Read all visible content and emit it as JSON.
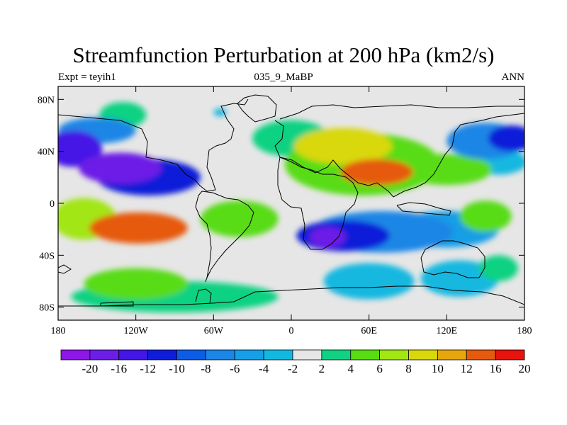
{
  "chart_data": {
    "type": "heatmap",
    "title": "Streamfunction Perturbation at 200 hPa (km2/s)",
    "subtitle_left": "Expt = teyih1",
    "subtitle_center": "035_9_MaBP",
    "subtitle_right": "ANN",
    "x_ticks": [
      {
        "value": -180,
        "label": "180"
      },
      {
        "value": -120,
        "label": "120W"
      },
      {
        "value": -60,
        "label": "60W"
      },
      {
        "value": 0,
        "label": "0"
      },
      {
        "value": 60,
        "label": "60E"
      },
      {
        "value": 120,
        "label": "120E"
      },
      {
        "value": 180,
        "label": "180"
      }
    ],
    "y_ticks": [
      {
        "value": 80,
        "label": "80N"
      },
      {
        "value": 40,
        "label": "40N"
      },
      {
        "value": 0,
        "label": "0"
      },
      {
        "value": -40,
        "label": "40S"
      },
      {
        "value": -80,
        "label": "80S"
      }
    ],
    "xlim": [
      -180,
      180
    ],
    "ylim": [
      -90,
      90
    ],
    "colorbar": {
      "levels": [
        -20,
        -16,
        -12,
        -10,
        -8,
        -6,
        -4,
        -2,
        2,
        4,
        6,
        8,
        10,
        12,
        16,
        20
      ],
      "labels": [
        "-20",
        "-16",
        "-12",
        "-10",
        "-8",
        "-6",
        "-4",
        "-2",
        "2",
        "4",
        "6",
        "8",
        "10",
        "12",
        "16",
        "20"
      ],
      "colors": [
        "#8e16e6",
        "#6c1ee6",
        "#4416e6",
        "#0e1ed8",
        "#0c5ce6",
        "#1a86e6",
        "#169ee6",
        "#13b8e0",
        "#e6e6e6",
        "#10d282",
        "#58dc12",
        "#a2e612",
        "#d8d80c",
        "#e6a60e",
        "#e65a0e",
        "#e6140c"
      ]
    },
    "field_features": [
      {
        "lon": -132,
        "lat": 27,
        "peak": -22,
        "spread_lon": 32,
        "spread_lat": 12,
        "color_index": 1
      },
      {
        "lon": -168,
        "lat": 42,
        "peak": -14,
        "spread_lon": 22,
        "spread_lat": 14,
        "color_index": 2
      },
      {
        "lon": -150,
        "lat": 56,
        "peak": -6,
        "spread_lon": 30,
        "spread_lat": 10,
        "color_index": 5
      },
      {
        "lon": -110,
        "lat": 20,
        "peak": -10,
        "spread_lon": 40,
        "spread_lat": 14,
        "color_index": 3
      },
      {
        "lon": -118,
        "lat": -19,
        "peak": 17,
        "spread_lon": 38,
        "spread_lat": 12,
        "color_index": 14
      },
      {
        "lon": -160,
        "lat": -12,
        "peak": 8,
        "spread_lon": 25,
        "spread_lat": 16,
        "color_index": 11
      },
      {
        "lon": -40,
        "lat": -12,
        "peak": 6,
        "spread_lon": 30,
        "spread_lat": 14,
        "color_index": 10
      },
      {
        "lon": -120,
        "lat": -62,
        "peak": 5,
        "spread_lon": 40,
        "spread_lat": 12,
        "color_index": 10
      },
      {
        "lon": -90,
        "lat": -72,
        "peak": 3,
        "spread_lon": 80,
        "spread_lat": 12,
        "color_index": 9
      },
      {
        "lon": -130,
        "lat": 68,
        "peak": 3,
        "spread_lon": 18,
        "spread_lat": 10,
        "color_index": 9
      },
      {
        "lon": -55,
        "lat": 70,
        "peak": -3,
        "spread_lon": 5,
        "spread_lat": 3,
        "color_index": 7
      },
      {
        "lon": 66,
        "lat": 24,
        "peak": 15,
        "spread_lon": 28,
        "spread_lat": 10,
        "color_index": 14
      },
      {
        "lon": 40,
        "lat": 44,
        "peak": 9,
        "spread_lon": 38,
        "spread_lat": 14,
        "color_index": 12
      },
      {
        "lon": 55,
        "lat": 30,
        "peak": 7,
        "spread_lon": 60,
        "spread_lat": 24,
        "color_index": 10
      },
      {
        "lon": 120,
        "lat": 26,
        "peak": 5,
        "spread_lon": 35,
        "spread_lat": 12,
        "color_index": 10
      },
      {
        "lon": 0,
        "lat": 50,
        "peak": 5,
        "spread_lon": 30,
        "spread_lat": 14,
        "color_index": 9
      },
      {
        "lon": 28,
        "lat": -26,
        "peak": -20,
        "spread_lon": 14,
        "spread_lat": 8,
        "color_index": 1
      },
      {
        "lon": 40,
        "lat": -25,
        "peak": -10,
        "spread_lon": 36,
        "spread_lat": 12,
        "color_index": 3
      },
      {
        "lon": 70,
        "lat": -22,
        "peak": -6,
        "spread_lon": 55,
        "spread_lat": 16,
        "color_index": 5
      },
      {
        "lon": 120,
        "lat": -20,
        "peak": -4,
        "spread_lon": 40,
        "spread_lat": 14,
        "color_index": 6
      },
      {
        "lon": 60,
        "lat": -60,
        "peak": -4,
        "spread_lon": 35,
        "spread_lat": 14,
        "color_index": 7
      },
      {
        "lon": 130,
        "lat": -58,
        "peak": -3,
        "spread_lon": 30,
        "spread_lat": 14,
        "color_index": 7
      },
      {
        "lon": 170,
        "lat": 50,
        "peak": -12,
        "spread_lon": 18,
        "spread_lat": 10,
        "color_index": 3
      },
      {
        "lon": 150,
        "lat": 48,
        "peak": -6,
        "spread_lon": 30,
        "spread_lat": 14,
        "color_index": 5
      },
      {
        "lon": 160,
        "lat": 32,
        "peak": -3,
        "spread_lon": 22,
        "spread_lat": 10,
        "color_index": 7
      },
      {
        "lon": 150,
        "lat": -10,
        "peak": 5,
        "spread_lon": 20,
        "spread_lat": 12,
        "color_index": 10
      },
      {
        "lon": 160,
        "lat": -50,
        "peak": 3,
        "spread_lon": 15,
        "spread_lat": 10,
        "color_index": 9
      }
    ]
  }
}
